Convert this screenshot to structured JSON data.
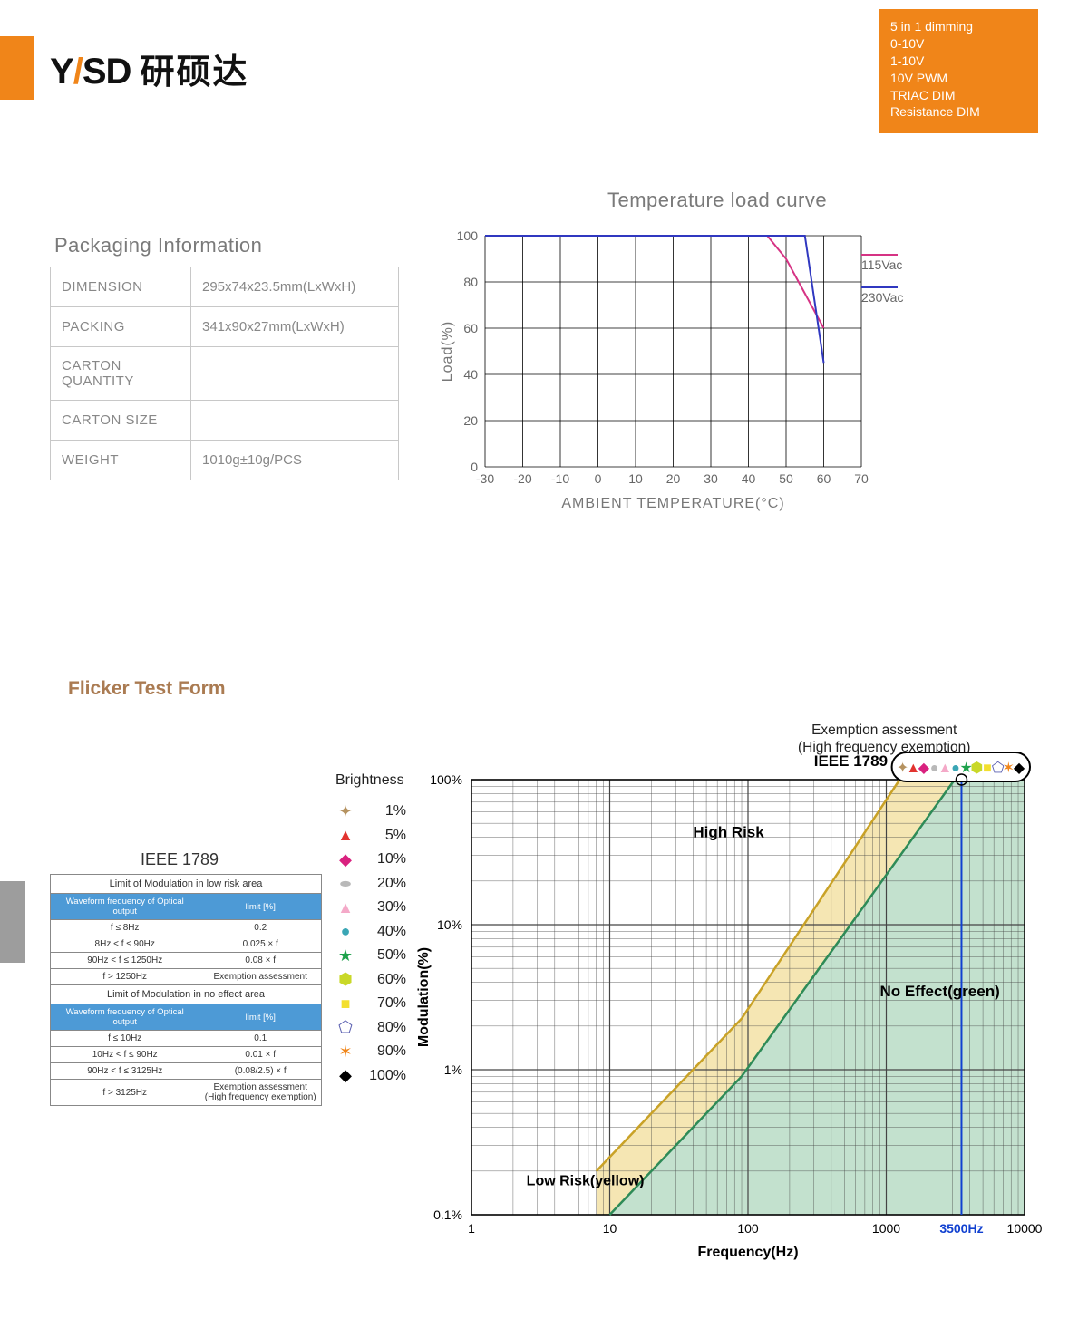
{
  "header": {
    "logo_text": "YSD 研硕达",
    "feature_lines": [
      "5 in 1 dimming",
      "0-10V",
      "1-10V",
      "10V PWM",
      "TRIAC DIM",
      " Resistance DIM"
    ],
    "feature_bg": "#f08519"
  },
  "packaging": {
    "title": "Packaging Information",
    "rows": [
      {
        "label": "DIMENSION",
        "value": "295x74x23.5mm(LxWxH)"
      },
      {
        "label": "PACKING",
        "value": "341x90x27mm(LxWxH)"
      },
      {
        "label": "CARTON QUANTITY",
        "value": ""
      },
      {
        "label": "CARTON SIZE",
        "value": ""
      },
      {
        "label": "WEIGHT",
        "value": "1010g±10g/PCS"
      }
    ]
  },
  "temp_chart": {
    "title": "Temperature load curve",
    "xlabel": "AMBIENT TEMPERATURE(°C)",
    "ylabel": "Load(%)",
    "x_ticks": [
      -30,
      -20,
      -10,
      0,
      10,
      20,
      30,
      40,
      50,
      60,
      70
    ],
    "y_ticks": [
      0,
      20,
      40,
      60,
      80,
      100
    ],
    "xlim": [
      -30,
      70
    ],
    "ylim": [
      0,
      100
    ],
    "grid_color": "#000000",
    "series": [
      {
        "name": "115Vac",
        "color": "#d63384",
        "points": [
          [
            -30,
            100
          ],
          [
            45,
            100
          ],
          [
            50,
            90
          ],
          [
            60,
            60
          ]
        ]
      },
      {
        "name": "230Vac",
        "color": "#3038c0",
        "points": [
          [
            -30,
            100
          ],
          [
            55,
            100
          ],
          [
            60,
            45
          ]
        ]
      }
    ]
  },
  "flicker": {
    "title": "Flicker Test Form",
    "ieee_title": "IEEE 1789",
    "table": {
      "section1_title": "Limit of Modulation in low risk area",
      "header1": [
        "Waveform frequency of Optical output",
        "limit [%]"
      ],
      "rows1": [
        [
          "f ≤ 8Hz",
          "0.2"
        ],
        [
          "8Hz < f ≤ 90Hz",
          "0.025 × f"
        ],
        [
          "90Hz < f ≤ 1250Hz",
          "0.08 × f"
        ],
        [
          "f > 1250Hz",
          "Exemption assessment"
        ]
      ],
      "section2_title": "Limit of Modulation in no effect area",
      "header2": [
        "Waveform frequency of Optical output",
        "limit [%]"
      ],
      "rows2": [
        [
          "f ≤ 10Hz",
          "0.1"
        ],
        [
          "10Hz < f ≤ 90Hz",
          "0.01 × f"
        ],
        [
          "90Hz < f ≤ 3125Hz",
          "(0.08/2.5) × f"
        ],
        [
          "f > 3125Hz",
          "Exemption assessment (High frequency exemption)"
        ]
      ]
    },
    "brightness_title": "Brightness",
    "brightness": [
      {
        "pct": "1%",
        "marker": "✦",
        "color": "#b59260"
      },
      {
        "pct": "5%",
        "marker": "▲",
        "color": "#e2332f"
      },
      {
        "pct": "10%",
        "marker": "◆",
        "color": "#d9217f"
      },
      {
        "pct": "20%",
        "marker": "●",
        "color": "#b9b9b9",
        "ellipse": true
      },
      {
        "pct": "30%",
        "marker": "▲",
        "color": "#f4a9c8"
      },
      {
        "pct": "40%",
        "marker": "●",
        "color": "#3aa6b5"
      },
      {
        "pct": "50%",
        "marker": "★",
        "color": "#1ea24c"
      },
      {
        "pct": "60%",
        "marker": "⬢",
        "color": "#c9d828"
      },
      {
        "pct": "70%",
        "marker": "■",
        "color": "#f3df2e"
      },
      {
        "pct": "80%",
        "marker": "⬠",
        "color": "#5a5fb0"
      },
      {
        "pct": "90%",
        "marker": "✶",
        "color": "#f08519"
      },
      {
        "pct": "100%",
        "marker": "◆",
        "color": "#000000"
      }
    ],
    "exemption_label": [
      "Exemption assessment",
      "(High frequency exemption)"
    ],
    "chart": {
      "title": "IEEE 1789",
      "xlabel": "Frequency(Hz)",
      "ylabel": "Modulation(%)",
      "xlim": [
        1,
        10000
      ],
      "ylim": [
        0.1,
        100
      ],
      "x_ticks": [
        1,
        10,
        100,
        1000,
        10000
      ],
      "y_ticks": [
        0.1,
        1,
        10,
        100
      ],
      "x_tick_labels": [
        "1",
        "10",
        "100",
        "1000",
        "10000"
      ],
      "y_tick_labels": [
        "0.1%",
        "1%",
        "10%",
        "100%"
      ],
      "marker_freq_label": "3500Hz",
      "marker_freq": 3500,
      "regions": {
        "no_effect": {
          "label": "No Effect(green)",
          "fill": "#b9dcc5",
          "fill_opacity": 0.85
        },
        "low_risk": {
          "label": "Low Risk(yellow)",
          "fill": "#f3e2a6",
          "fill_opacity": 0.85
        },
        "high_risk": {
          "label": "High Risk"
        }
      },
      "low_risk_line": [
        [
          8,
          0.2
        ],
        [
          90,
          2.25
        ],
        [
          1250,
          100
        ]
      ],
      "no_effect_line": [
        [
          10,
          0.1
        ],
        [
          90,
          0.9
        ],
        [
          3125,
          100
        ]
      ],
      "line_color_green": "#2e8b57",
      "line_color_yellow": "#c9a227",
      "vert_line_color": "#1040d0"
    }
  }
}
